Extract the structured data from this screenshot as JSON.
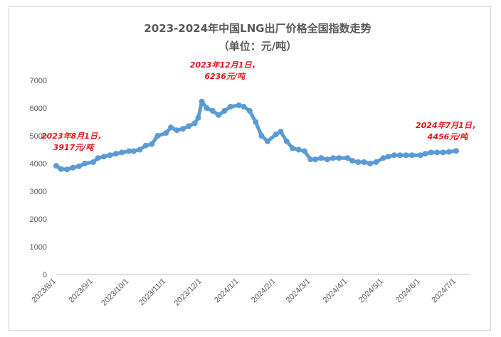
{
  "chart_data": {
    "type": "line",
    "title": "2023-2024年中国LNG出厂价格全国指数走势",
    "subtitle": "（单位：元/吨）",
    "xlabel": "",
    "ylabel": "",
    "ylim": [
      0,
      7000
    ],
    "yticks": [
      "0",
      "1000",
      "2000",
      "3000",
      "4000",
      "5000",
      "6000",
      "7000"
    ],
    "xticks": [
      "2023/8/1",
      "2023/9/1",
      "2023/10/1",
      "2023/11/1",
      "2023/12/1",
      "2024/1/1",
      "2024/2/1",
      "2024/3/1",
      "2024/4/1",
      "2024/5/1",
      "2024/6/1",
      "2024/7/1"
    ],
    "grid": false,
    "legend": "none",
    "series_color": "#5b9bd5",
    "series": [
      {
        "x": [
          "2023/8/1",
          "2023/8/5",
          "2023/8/10",
          "2023/8/15",
          "2023/8/20",
          "2023/8/25",
          "2023/9/1",
          "2023/9/5",
          "2023/9/10",
          "2023/9/15",
          "2023/9/20",
          "2023/9/25",
          "2023/10/1",
          "2023/10/5",
          "2023/10/10",
          "2023/10/15",
          "2023/10/20",
          "2023/10/25",
          "2023/11/1",
          "2023/11/5",
          "2023/11/10",
          "2023/11/15",
          "2023/11/20",
          "2023/11/25",
          "2023/11/28",
          "2023/12/1",
          "2023/12/5",
          "2023/12/10",
          "2023/12/15",
          "2023/12/20",
          "2023/12/25",
          "2024/1/1",
          "2024/1/5",
          "2024/1/10",
          "2024/1/15",
          "2024/1/20",
          "2024/1/25",
          "2024/2/1",
          "2024/2/5",
          "2024/2/10",
          "2024/2/15",
          "2024/2/20",
          "2024/2/25",
          "2024/3/1",
          "2024/3/5",
          "2024/3/10",
          "2024/3/15",
          "2024/3/20",
          "2024/3/25",
          "2024/4/1",
          "2024/4/5",
          "2024/4/10",
          "2024/4/15",
          "2024/4/20",
          "2024/4/25",
          "2024/5/1",
          "2024/5/5",
          "2024/5/10",
          "2024/5/15",
          "2024/5/20",
          "2024/5/25",
          "2024/6/1",
          "2024/6/5",
          "2024/6/10",
          "2024/6/15",
          "2024/6/20",
          "2024/6/25",
          "2024/7/1"
        ],
        "values": [
          3917,
          3800,
          3790,
          3850,
          3900,
          4000,
          4050,
          4200,
          4250,
          4300,
          4350,
          4400,
          4450,
          4450,
          4500,
          4650,
          4700,
          5000,
          5100,
          5300,
          5200,
          5250,
          5350,
          5450,
          5650,
          6236,
          6000,
          5900,
          5750,
          5900,
          6050,
          6100,
          6050,
          5900,
          5500,
          5000,
          4800,
          5050,
          5150,
          4800,
          4550,
          4500,
          4450,
          4150,
          4150,
          4200,
          4150,
          4200,
          4200,
          4200,
          4100,
          4050,
          4050,
          4000,
          4050,
          4200,
          4250,
          4300,
          4300,
          4300,
          4300,
          4300,
          4350,
          4400,
          4400,
          4400,
          4420,
          4456
        ]
      }
    ],
    "annotations": [
      {
        "line1": "2023年8月1日，",
        "line2": "3917元/吨",
        "x": "2023/8/1",
        "value": 3917
      },
      {
        "line1": "2023年12月1日，",
        "line2": "6236元/吨",
        "x": "2023/12/1",
        "value": 6236
      },
      {
        "line1": "2024年7月1日，",
        "line2": "4456元/吨",
        "x": "2024/7/1",
        "value": 4456
      }
    ]
  }
}
